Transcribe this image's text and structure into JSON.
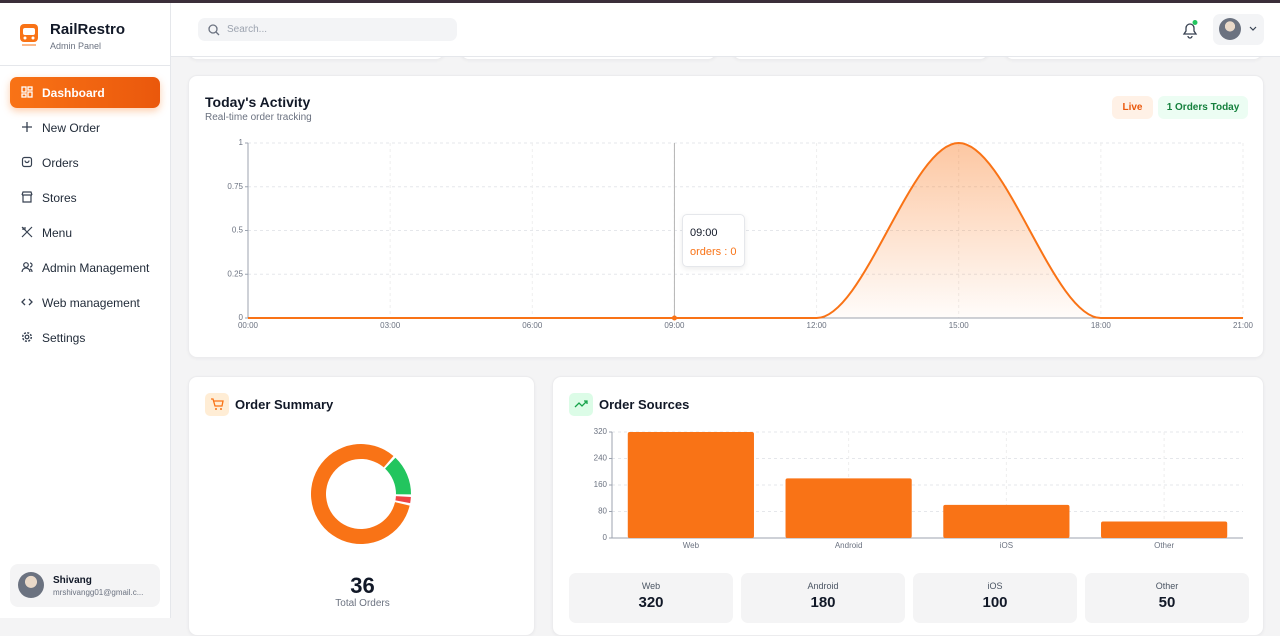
{
  "sidebar": {
    "brand": "RailRestro",
    "subtitle": "Admin Panel",
    "nav": [
      "Dashboard",
      "New Order",
      "Orders",
      "Stores",
      "Menu",
      "Admin Management",
      "Web management",
      "Settings"
    ],
    "user": {
      "name": "Shivang",
      "email": "mrshivangg01@gmail.c..."
    }
  },
  "header": {
    "search_placeholder": "Search..."
  },
  "activity": {
    "title": "Today's Activity",
    "subtitle": "Real-time order tracking",
    "badges": [
      "Live",
      "1 Orders Today"
    ]
  },
  "summary": {
    "title": "Order Summary",
    "total": 36,
    "total_label": "Total Orders"
  },
  "sources": {
    "title": "Order Sources"
  },
  "chart_data": [
    {
      "type": "line",
      "categories": [
        "00:00",
        "03:00",
        "06:00",
        "09:00",
        "12:00",
        "15:00",
        "18:00",
        "21:00"
      ],
      "series": [
        {
          "name": "orders",
          "color": "#f97316",
          "values": [
            0,
            0,
            0,
            0,
            0,
            1,
            0,
            0
          ]
        }
      ],
      "ylim": [
        0,
        1
      ],
      "yticks": [
        0,
        0.25,
        0.5,
        0.75,
        1
      ],
      "grid": true,
      "area": true,
      "tooltip": {
        "title": "09:00",
        "label": "orders : 0"
      }
    },
    {
      "type": "donut",
      "values": [
        5,
        1,
        30
      ],
      "colors": [
        "#22c55e",
        "#ef4444",
        "#f97316"
      ]
    },
    {
      "type": "bar",
      "categories": [
        "Web",
        "Android",
        "iOS",
        "Other"
      ],
      "values": [
        320,
        180,
        100,
        50
      ],
      "color": "#f97316",
      "ylim": [
        0,
        320
      ],
      "yticks": [
        0,
        80,
        160,
        240,
        320
      ],
      "grid": true
    }
  ]
}
